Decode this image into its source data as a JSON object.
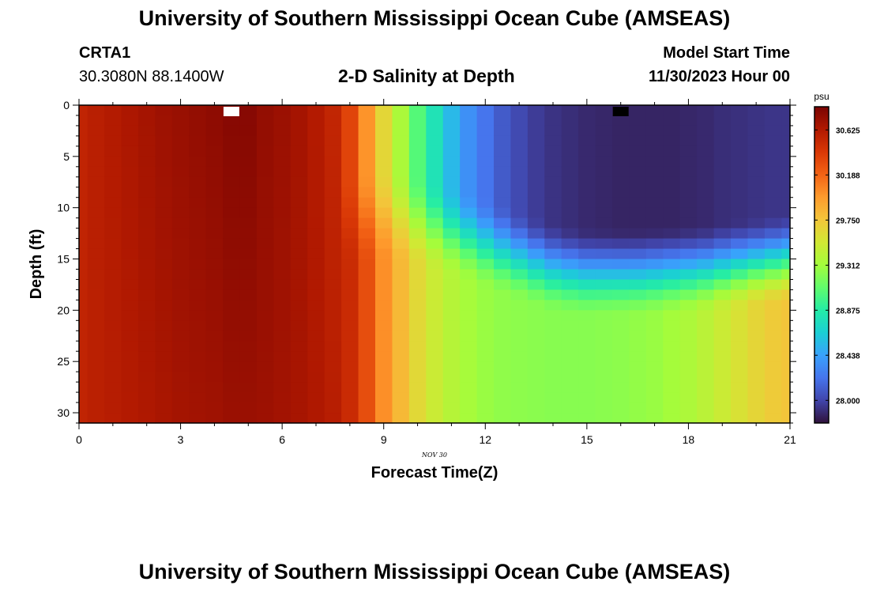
{
  "header": {
    "title": "University of Southern Mississippi Ocean Cube (AMSEAS)",
    "station_name": "CRTA1",
    "station_coords": "30.3080N  88.1400W",
    "plot_title": "2-D Salinity at Depth",
    "start_label": "Model Start Time",
    "start_value": "11/30/2023 Hour 00"
  },
  "footer": {
    "title": "University of Southern Mississippi Ocean Cube (AMSEAS)"
  },
  "chart_data": {
    "type": "heatmap",
    "title": "2-D Salinity at Depth",
    "xlabel": "Forecast Time(Z)",
    "ylabel": "Depth (ft)",
    "date_label": "NOV 30",
    "xlim": [
      0,
      21
    ],
    "ylim": [
      0,
      31
    ],
    "x_ticks": [
      0,
      3,
      6,
      9,
      12,
      15,
      18,
      21
    ],
    "y_ticks": [
      0,
      5,
      10,
      15,
      20,
      25,
      30
    ],
    "colorbar": {
      "unit": "psu",
      "range": [
        27.78,
        30.85
      ],
      "ticks": [
        "30.625",
        "30.188",
        "29.750",
        "29.312",
        "28.875",
        "28.438",
        "28.000"
      ],
      "colors": [
        "#30123b",
        "#4145ab",
        "#4675ed",
        "#39a2fc",
        "#1bcfd4",
        "#24eca6",
        "#61fc6c",
        "#a4fc3b",
        "#d1e834",
        "#f3c63a",
        "#fe9b2d",
        "#f36315",
        "#d93806",
        "#b11901",
        "#7a0403"
      ]
    },
    "x_hours": [
      0,
      0.5,
      1,
      1.5,
      2,
      2.5,
      3,
      3.5,
      4,
      4.5,
      5,
      5.5,
      6,
      6.5,
      7,
      7.5,
      8,
      8.5,
      9,
      9.5,
      10,
      10.5,
      11,
      11.5,
      12,
      12.5,
      13,
      13.5,
      14,
      14.5,
      15,
      15.5,
      16,
      16.5,
      17,
      17.5,
      18,
      18.5,
      19,
      19.5,
      20,
      20.5,
      21
    ],
    "depth_levels_ft": [
      0,
      1,
      2,
      3,
      4,
      5,
      6,
      7,
      8,
      9,
      10,
      11,
      12,
      13,
      14,
      15,
      16,
      17,
      18,
      19,
      20,
      21,
      22,
      23,
      24,
      25,
      26,
      27,
      28,
      29,
      30,
      31
    ],
    "surface_salinity": [
      30.55,
      30.59,
      30.62,
      30.65,
      30.68,
      30.71,
      30.73,
      30.75,
      30.77,
      30.8,
      30.8,
      30.75,
      30.72,
      30.68,
      30.62,
      30.54,
      30.35,
      30.0,
      29.65,
      29.35,
      29.05,
      28.8,
      28.55,
      28.35,
      28.22,
      28.1,
      28.02,
      27.96,
      27.92,
      27.9,
      27.88,
      27.87,
      27.86,
      27.86,
      27.86,
      27.86,
      27.87,
      27.88,
      27.9,
      27.91,
      27.92,
      27.93,
      27.93
    ],
    "bottom_salinity": [
      30.55,
      30.58,
      30.6,
      30.62,
      30.64,
      30.66,
      30.68,
      30.69,
      30.7,
      30.72,
      30.72,
      30.71,
      30.69,
      30.67,
      30.64,
      30.6,
      30.5,
      30.3,
      30.02,
      29.82,
      29.64,
      29.5,
      29.4,
      29.33,
      29.28,
      29.25,
      29.24,
      29.23,
      29.22,
      29.22,
      29.22,
      29.23,
      29.24,
      29.26,
      29.28,
      29.32,
      29.36,
      29.42,
      29.5,
      29.58,
      29.66,
      29.72,
      29.76
    ],
    "halocline_depth_ft": [
      31,
      31,
      31,
      31,
      31,
      31,
      31,
      31,
      31,
      31,
      31,
      31,
      31,
      31,
      31,
      31,
      11.5,
      11.2,
      10.8,
      11.0,
      11.5,
      12.0,
      12.5,
      13.0,
      13.6,
      14.2,
      14.8,
      15.4,
      15.9,
      16.2,
      16.4,
      16.4,
      16.4,
      16.4,
      16.3,
      16.2,
      16.1,
      16.0,
      15.8,
      15.6,
      15.4,
      15.2,
      15.0
    ]
  }
}
